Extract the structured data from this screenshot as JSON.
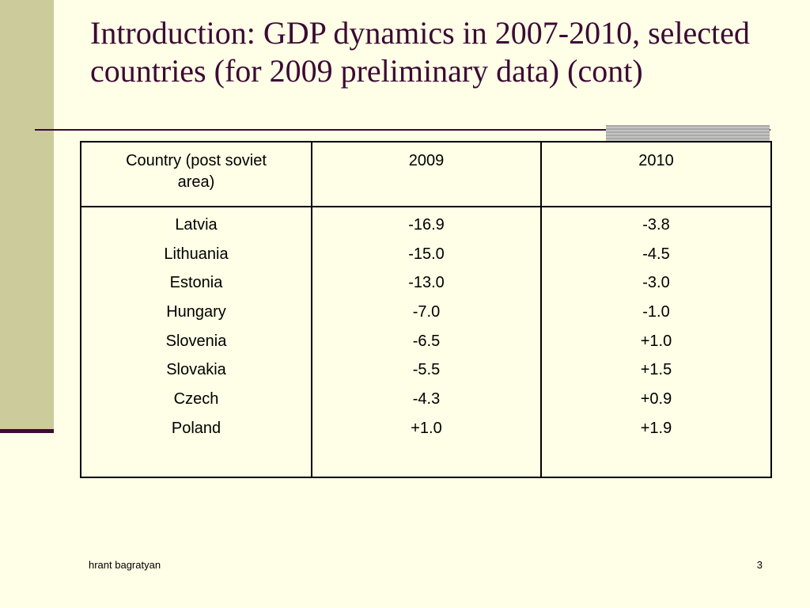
{
  "slide": {
    "title": "Introduction: GDP dynamics in 2007-2010, selected countries (for 2009 preliminary data) (cont)",
    "footer_text": "hrant bagratyan",
    "slide_number": "3",
    "colors": {
      "background": "#fffee6",
      "accent": "#3b0a35",
      "sidebar": "#cbcb9c"
    }
  },
  "table": {
    "headers": [
      "Country (post soviet area)",
      "2009",
      "2010"
    ],
    "countries": [
      "Latvia",
      "Lithuania",
      "Estonia",
      "Hungary",
      "Slovenia",
      "Slovakia",
      "Czech",
      "Poland"
    ],
    "values_2009": [
      "-16.9",
      "-15.0",
      "-13.0",
      "-7.0",
      "-6.5",
      "-5.5",
      "-4.3",
      "+1.0"
    ],
    "values_2010": [
      "-3.8",
      "-4.5",
      "-3.0",
      "-1.0",
      "+1.0",
      "+1.5",
      "+0.9",
      "+1.9"
    ]
  }
}
